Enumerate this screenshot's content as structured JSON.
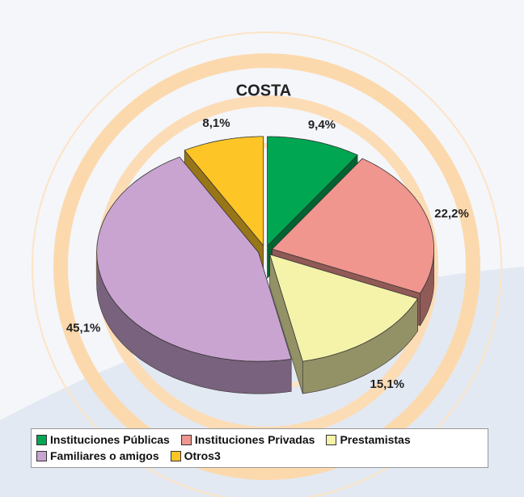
{
  "chart_data": {
    "type": "pie3d",
    "title": "COSTA",
    "series": [
      {
        "name": "Instituciones Públicas",
        "color": "#00a651",
        "values": [
          9.4
        ],
        "value_labels": [
          "9,4%"
        ]
      },
      {
        "name": "Instituciones Privadas",
        "color": "#f0968f",
        "values": [
          22.2
        ],
        "value_labels": [
          "22,2%"
        ]
      },
      {
        "name": "Prestamistas",
        "color": "#f5f2aa",
        "values": [
          15.1
        ],
        "value_labels": [
          "15,1%"
        ]
      },
      {
        "name": "Familiares o amigos",
        "color": "#c9a4d0",
        "values": [
          45.1
        ],
        "value_labels": [
          "45,1%"
        ]
      },
      {
        "name": "Otros3",
        "color": "#fdc526",
        "values": [
          8.1
        ],
        "value_labels": [
          "8,1%"
        ]
      }
    ]
  }
}
